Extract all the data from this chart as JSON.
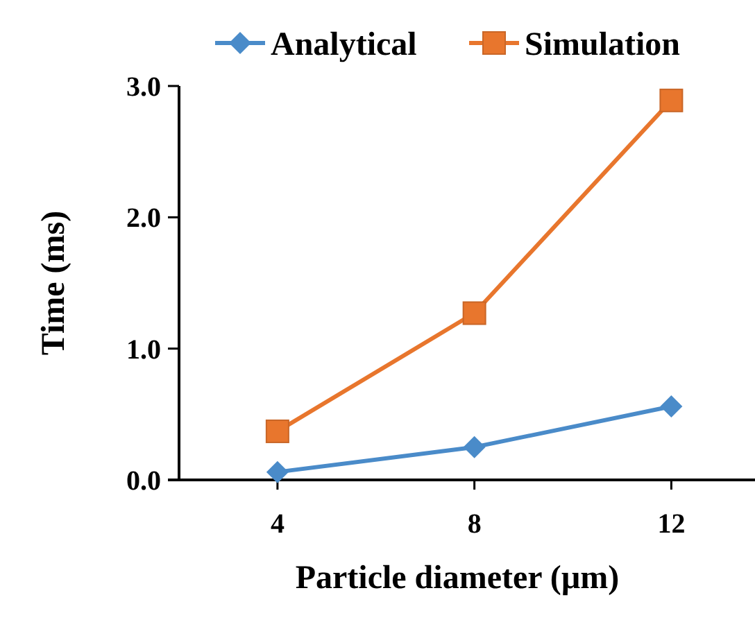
{
  "chart_data": {
    "type": "line",
    "xlabel": "Particle diameter (µm)",
    "ylabel": "Time (ms)",
    "x": [
      4,
      8,
      12
    ],
    "xlim": [
      2,
      13.7
    ],
    "xticks": [
      4,
      8,
      12
    ],
    "ylim": [
      0,
      3
    ],
    "yticks": [
      {
        "value": 0,
        "label": "0.0"
      },
      {
        "value": 1,
        "label": "1.0"
      },
      {
        "value": 2,
        "label": "2.0"
      },
      {
        "value": 3,
        "label": "3.0"
      }
    ],
    "legend": "top",
    "grid": false,
    "series": [
      {
        "name": "Analytical",
        "color": "#4a8bc9",
        "marker": "diamond",
        "values": [
          0.06,
          0.25,
          0.56
        ]
      },
      {
        "name": "Simulation",
        "color": "#e8762d",
        "marker": "square",
        "values": [
          0.37,
          1.27,
          2.89
        ]
      }
    ]
  }
}
